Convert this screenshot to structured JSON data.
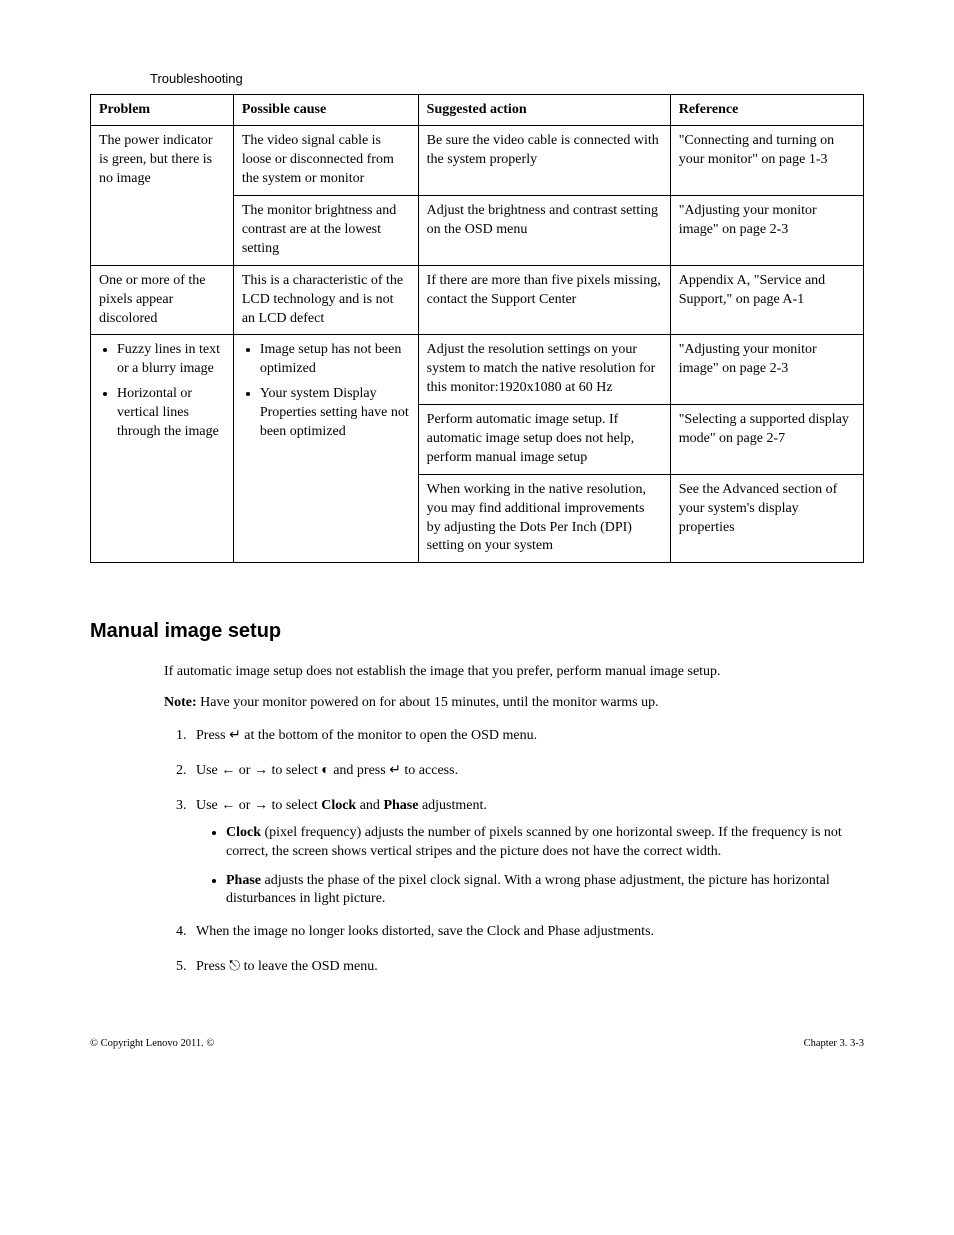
{
  "table": {
    "title": "Troubleshooting",
    "headers": {
      "problem": "Problem",
      "cause": "Possible cause",
      "action": "Suggested action",
      "reference": "Reference"
    },
    "rows": {
      "r1": {
        "problem": "The power indicator is green, but there is no image",
        "cause": "The video signal cable is loose or disconnected from the system or monitor",
        "action": "Be sure the video cable is connected with the system properly",
        "reference": "\"Connecting and turning on your monitor\" on page 1-3"
      },
      "r2": {
        "cause": "The monitor brightness and contrast are at the lowest setting",
        "action": "Adjust the brightness and contrast setting on the OSD menu",
        "reference": "\"Adjusting your monitor image\" on page 2-3"
      },
      "r3": {
        "problem": "One or more of the pixels appear discolored",
        "cause": "This is a characteristic of the LCD technology and is not an LCD defect",
        "action": "If there are more than five pixels missing, contact the Support Center",
        "reference": "Appendix A, \"Service and Support,\" on page A-1"
      },
      "r4": {
        "problem_bullets": [
          "Fuzzy lines in text or a blurry image",
          "Horizontal or vertical lines through the image"
        ],
        "cause_bullets": [
          "Image setup has not been optimized",
          "Your system Display Properties setting have not been optimized"
        ],
        "action": "Adjust the resolution settings on your system to match the native resolution for this monitor:1920x1080 at 60 Hz",
        "reference": "\"Adjusting your monitor image\" on page 2-3"
      },
      "r5": {
        "action": "Perform automatic image setup.  If automatic image setup does not help, perform manual image setup",
        "reference": "\"Selecting a supported display mode\" on page 2-7"
      },
      "r6": {
        "action": "When working in the native resolution, you may find additional improvements by adjusting the Dots Per Inch (DPI) setting on your system",
        "reference": "See the Advanced section of your system's display properties"
      }
    }
  },
  "section": {
    "heading": "Manual image setup",
    "intro": "If automatic image setup does not establish the image that you prefer, perform manual image setup.",
    "note_label": "Note:",
    "note_text": " Have your monitor powered on for about 15 minutes, until the monitor warms up.",
    "steps": {
      "s1a": "Press ",
      "s1b": " at the bottom of the monitor to open the OSD menu.",
      "s2a": "Use ",
      "s2b": " or ",
      "s2c": " to select ",
      "s2d": " and press ",
      "s2e": " to access.",
      "s3a": "Use ",
      "s3b": " or ",
      "s3c": " to select ",
      "s3_clock": "Clock",
      "s3_and": " and ",
      "s3_phase": "Phase",
      "s3d": " adjustment.",
      "s3_sub1_label": "Clock",
      "s3_sub1_text": " (pixel frequency) adjusts the number of pixels scanned by one horizontal sweep. If the frequency is not correct, the screen shows vertical stripes and the picture does not have the correct width.",
      "s3_sub2_label": "Phase",
      "s3_sub2_text": " adjusts the phase of the pixel clock signal. With a wrong phase adjustment, the picture has horizontal disturbances in light picture.",
      "s4": "When the image no longer looks distorted, save the Clock and Phase adjustments.",
      "s5a": "Press ",
      "s5b": "  to leave the OSD menu."
    }
  },
  "icons": {
    "enter": "↵",
    "left": "←",
    "right": "→",
    "adjust": "◐",
    "exit": "⎋"
  },
  "footer": {
    "left": "© Copyright Lenovo 2011. ©",
    "right": "Chapter 3.   3-3"
  }
}
